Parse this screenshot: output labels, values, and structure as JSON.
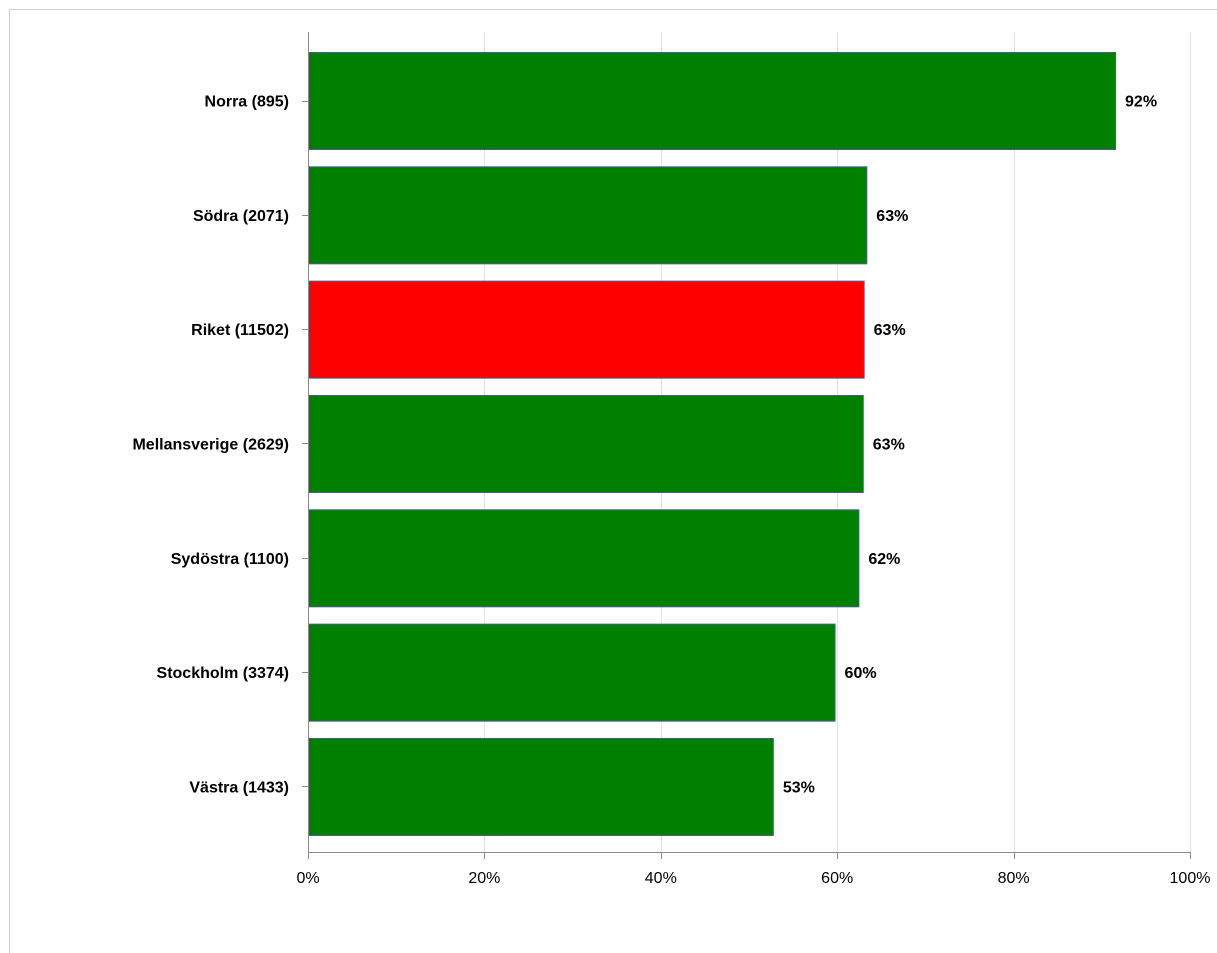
{
  "chart_data": {
    "type": "bar",
    "orientation": "horizontal",
    "categories": [
      "Norra (895)",
      "Södra (2071)",
      "Riket (11502)",
      "Mellansverige (2629)",
      "Sydöstra (1100)",
      "Stockholm (3374)",
      "Västra (1433)"
    ],
    "values": [
      91.5,
      63.3,
      63.0,
      62.9,
      62.4,
      59.7,
      52.7
    ],
    "value_labels": [
      "92%",
      "63%",
      "63%",
      "63%",
      "62%",
      "60%",
      "53%"
    ],
    "colors": [
      "#008000",
      "#008000",
      "#ff0000",
      "#008000",
      "#008000",
      "#008000",
      "#008000"
    ],
    "xlim": [
      0,
      100
    ],
    "x_ticks": [
      0,
      20,
      40,
      60,
      80,
      100
    ],
    "x_tick_labels": [
      "0%",
      "20%",
      "40%",
      "60%",
      "80%",
      "100%"
    ],
    "grid": true,
    "title": "",
    "xlabel": "",
    "ylabel": ""
  }
}
